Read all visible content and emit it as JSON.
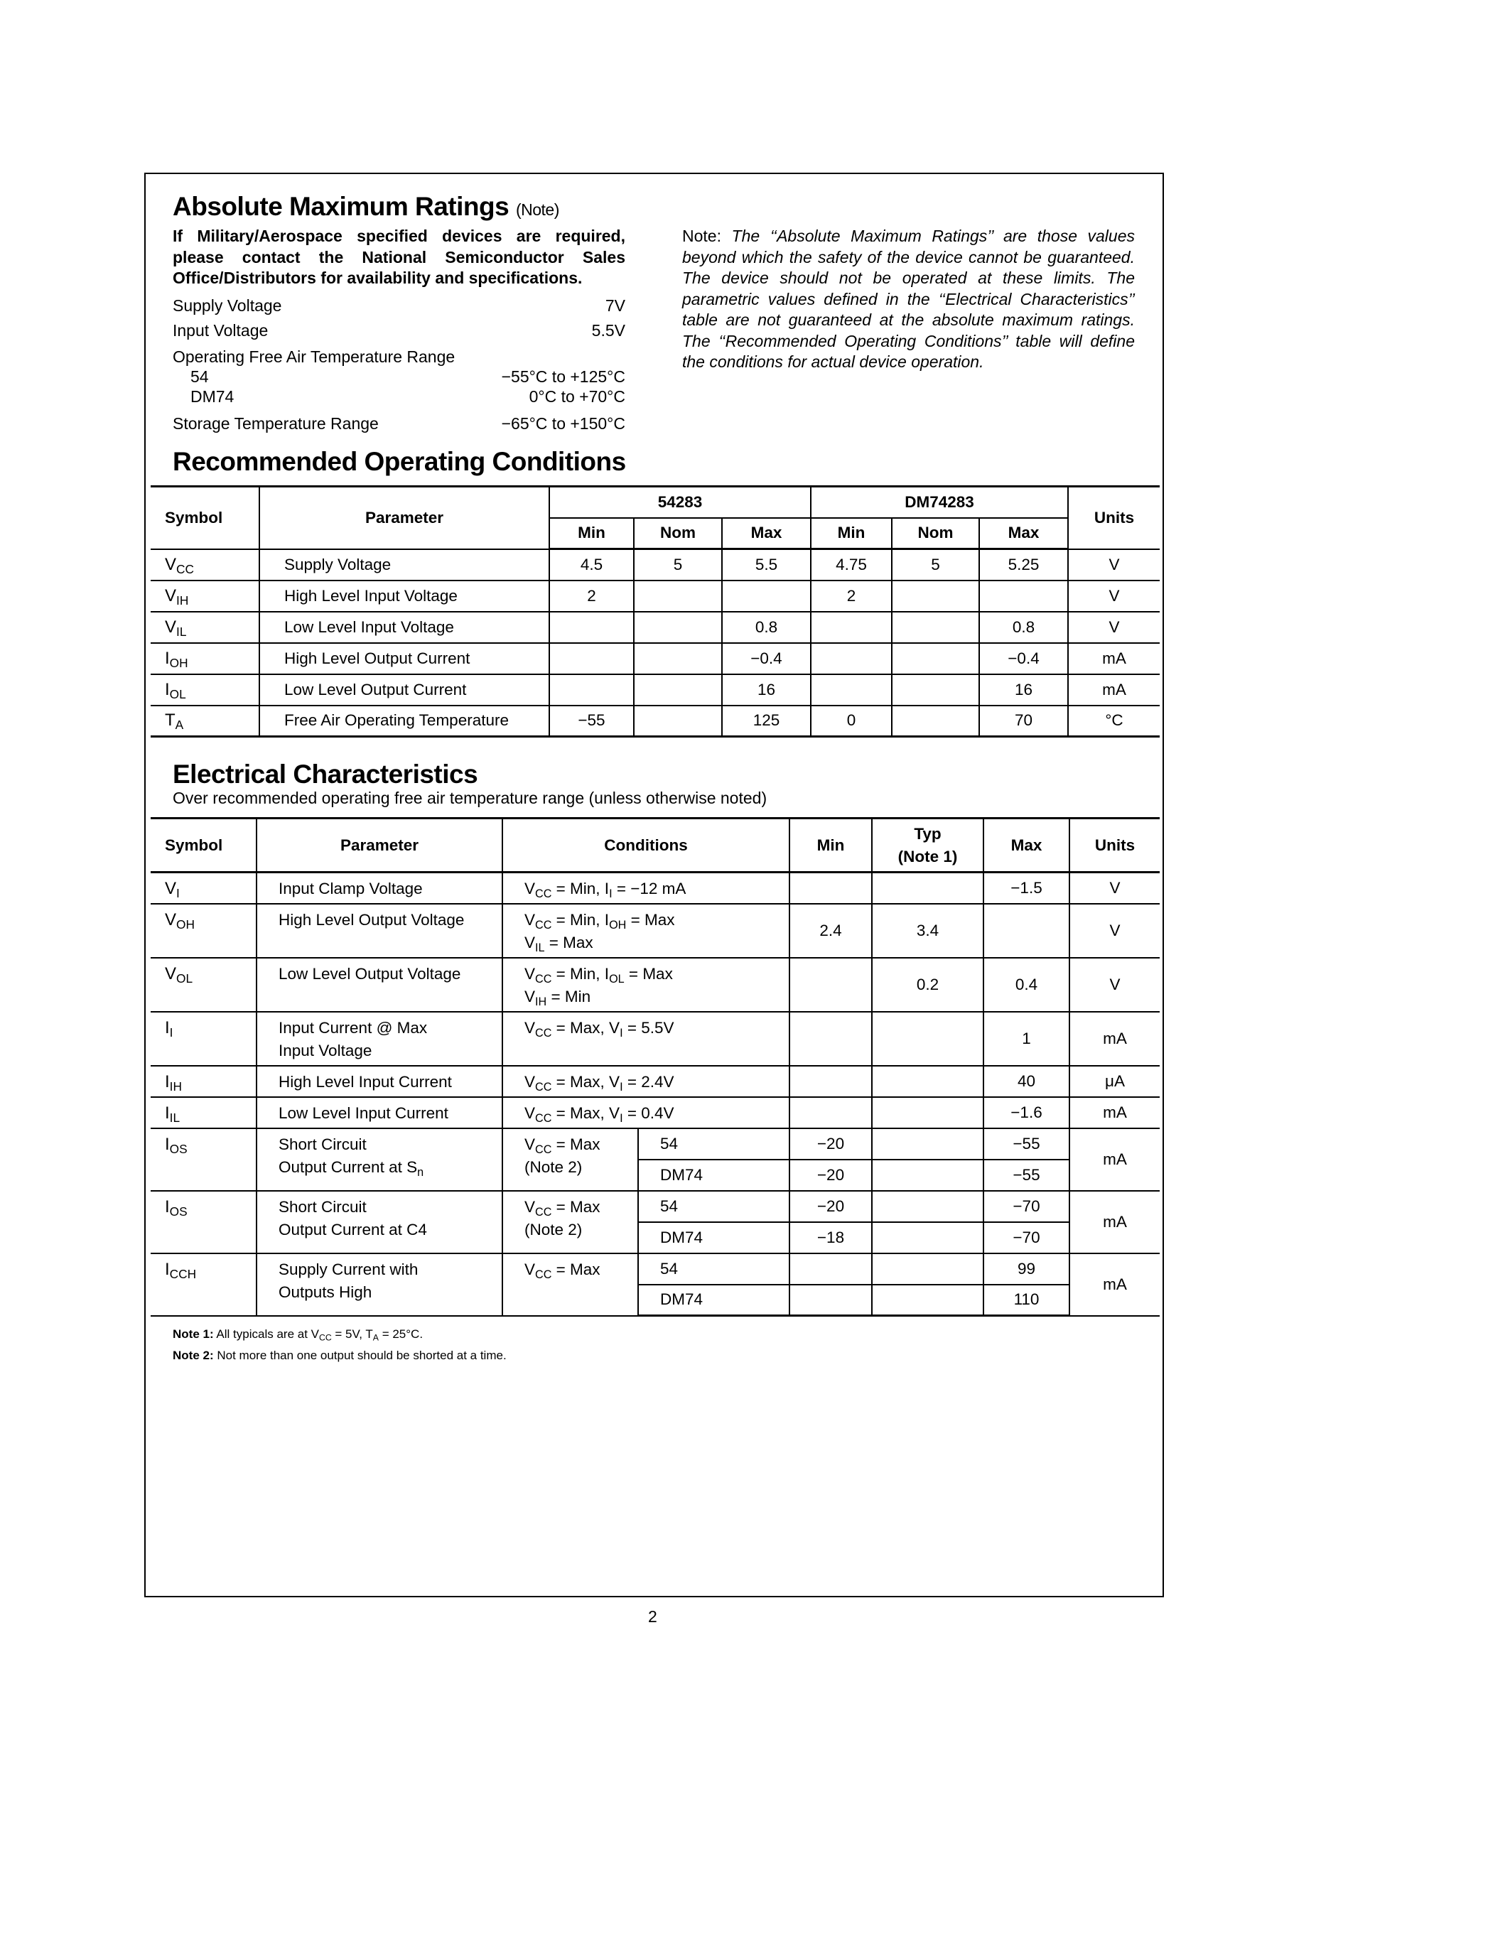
{
  "abs_max": {
    "title": "Absolute Maximum Ratings",
    "title_note": "(Note)",
    "warning": "If Military/Aerospace specified devices are required, please contact the National Semiconductor Sales Office/Distributors for availability and specifications.",
    "specs": [
      {
        "label": "Supply Voltage",
        "value": "7V"
      },
      {
        "label": "Input Voltage",
        "value": "5.5V"
      },
      {
        "label": "Operating Free Air Temperature Range",
        "value": ""
      },
      {
        "label": "54",
        "value": "−55°C to +125°C"
      },
      {
        "label": "DM74",
        "value": "0°C to +70°C"
      },
      {
        "label": "Storage Temperature Range",
        "value": "−65°C to +150°C"
      }
    ],
    "note_label": "Note:",
    "note_text": "The ‘‘Absolute Maximum Ratings’’ are those values beyond which the safety of the device cannot be guaranteed. The device should not be operated at these limits. The parametric values defined in the ‘‘Electrical Characteristics’’ table are not guaranteed at the absolute maximum ratings. The ‘‘Recommended Operating Conditions’’ table will define the conditions for actual device operation."
  },
  "roc": {
    "title": "Recommended Operating Conditions",
    "headers": {
      "symbol": "Symbol",
      "parameter": "Parameter",
      "group1": "54283",
      "group2": "DM74283",
      "units": "Units",
      "sub": [
        "Min",
        "Nom",
        "Max",
        "Min",
        "Nom",
        "Max"
      ]
    },
    "rows": [
      {
        "symbol": "V_{CC}",
        "parameter": "Supply Voltage",
        "values": [
          "4.5",
          "5",
          "5.5",
          "4.75",
          "5",
          "5.25"
        ],
        "units": "V"
      },
      {
        "symbol": "V_{IH}",
        "parameter": "High Level Input Voltage",
        "values": [
          "2",
          "",
          "",
          "2",
          "",
          ""
        ],
        "units": "V"
      },
      {
        "symbol": "V_{IL}",
        "parameter": "Low Level Input Voltage",
        "values": [
          "",
          "",
          "0.8",
          "",
          "",
          "0.8"
        ],
        "units": "V"
      },
      {
        "symbol": "I_{OH}",
        "parameter": "High Level Output Current",
        "values": [
          "",
          "",
          "−0.4",
          "",
          "",
          "−0.4"
        ],
        "units": "mA"
      },
      {
        "symbol": "I_{OL}",
        "parameter": "Low Level Output Current",
        "values": [
          "",
          "",
          "16",
          "",
          "",
          "16"
        ],
        "units": "mA"
      },
      {
        "symbol": "T_{A}",
        "parameter": "Free Air Operating Temperature",
        "values": [
          "−55",
          "",
          "125",
          "0",
          "",
          "70"
        ],
        "units": "°C"
      }
    ]
  },
  "ec": {
    "title": "Electrical Characteristics",
    "subtitle": "Over recommended operating free air temperature range (unless otherwise noted)",
    "headers": {
      "symbol": "Symbol",
      "parameter": "Parameter",
      "conditions": "Conditions",
      "min": "Min",
      "typ": "Typ",
      "typ_note": "(Note 1)",
      "max": "Max",
      "units": "Units"
    },
    "rows": [
      {
        "symbol": "V_{I}",
        "parameter": [
          "Input Clamp Voltage"
        ],
        "conditions": [
          "V_{CC} = Min, I_{I} = −12 mA"
        ],
        "min": "",
        "typ": "",
        "max": "−1.5",
        "units": "V"
      },
      {
        "symbol": "V_{OH}",
        "parameter": [
          "High Level Output Voltage"
        ],
        "conditions": [
          "V_{CC} = Min, I_{OH} = Max",
          "V_{IL} = Max"
        ],
        "min": "2.4",
        "typ": "3.4",
        "max": "",
        "units": "V"
      },
      {
        "symbol": "V_{OL}",
        "parameter": [
          "Low Level Output Voltage"
        ],
        "conditions": [
          "V_{CC} = Min, I_{OL} = Max",
          "V_{IH} = Min"
        ],
        "min": "",
        "typ": "0.2",
        "max": "0.4",
        "units": "V"
      },
      {
        "symbol": "I_{I}",
        "parameter": [
          "Input Current @ Max",
          "Input Voltage"
        ],
        "conditions": [
          "V_{CC} = Max, V_{I} = 5.5V"
        ],
        "min": "",
        "typ": "",
        "max": "1",
        "units": "mA"
      },
      {
        "symbol": "I_{IH}",
        "parameter": [
          "High Level Input Current"
        ],
        "conditions": [
          "V_{CC} = Max, V_{I} = 2.4V"
        ],
        "min": "",
        "typ": "",
        "max": "40",
        "units": "μA"
      },
      {
        "symbol": "I_{IL}",
        "parameter": [
          "Low Level Input Current"
        ],
        "conditions": [
          "V_{CC} = Max, V_{I} = 0.4V"
        ],
        "min": "",
        "typ": "",
        "max": "−1.6",
        "units": "mA"
      },
      {
        "symbol": "I_{OS}",
        "parameter": [
          "Short Circuit",
          "Output Current at S_{n}"
        ],
        "conditions": [
          "V_{CC} = Max",
          "(Note 2)"
        ],
        "units": "mA",
        "devices": [
          {
            "device": "54",
            "min": "−20",
            "typ": "",
            "max": "−55"
          },
          {
            "device": "DM74",
            "min": "−20",
            "typ": "",
            "max": "−55"
          }
        ]
      },
      {
        "symbol": "I_{OS}",
        "parameter": [
          "Short Circuit",
          "Output Current at C4"
        ],
        "conditions": [
          "V_{CC} = Max",
          "(Note 2)"
        ],
        "units": "mA",
        "devices": [
          {
            "device": "54",
            "min": "−20",
            "typ": "",
            "max": "−70"
          },
          {
            "device": "DM74",
            "min": "−18",
            "typ": "",
            "max": "−70"
          }
        ]
      },
      {
        "symbol": "I_{CCH}",
        "parameter": [
          "Supply Current with",
          "Outputs High"
        ],
        "conditions": [
          "V_{CC} = Max"
        ],
        "units": "mA",
        "devices": [
          {
            "device": "54",
            "min": "",
            "typ": "",
            "max": "99"
          },
          {
            "device": "DM74",
            "min": "",
            "typ": "",
            "max": "110"
          }
        ]
      }
    ],
    "notes": [
      {
        "label": "Note 1:",
        "text": "All typicals are at V_{CC} = 5V, T_{A} = 25°C."
      },
      {
        "label": "Note 2:",
        "text": "Not more than one output should be shorted at a time."
      }
    ]
  },
  "page_number": "2"
}
